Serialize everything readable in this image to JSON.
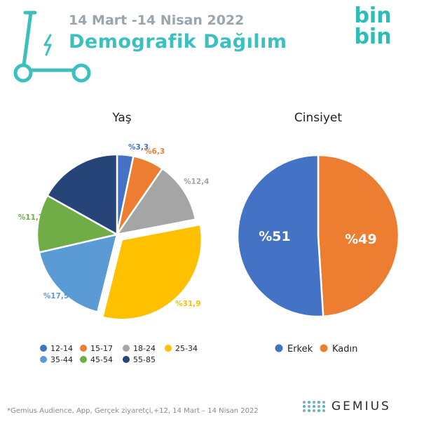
{
  "header": {
    "date_range": "14 Mart -14 Nisan 2022",
    "title": "Demografik Dağılım",
    "logo_line1": "bin",
    "logo_line2": "bin"
  },
  "colors": {
    "teal": "#3cbfbf",
    "gray_text": "#9aa6ad"
  },
  "chart_data": [
    {
      "type": "pie",
      "title": "Yaş",
      "categories": [
        "12-14",
        "15-17",
        "18-24",
        "25-34",
        "35-44",
        "45-54",
        "55-85"
      ],
      "values": [
        3.3,
        6.3,
        12.4,
        31.9,
        17.5,
        11.7,
        16.9
      ],
      "labels": [
        "%3,3",
        "%6,3",
        "%12,4",
        "%31,9",
        "%17,5",
        "%11,7",
        ""
      ],
      "colors": [
        "#4472c4",
        "#ed7d31",
        "#a5a5a5",
        "#ffc000",
        "#5b9bd5",
        "#70ad47",
        "#264478"
      ],
      "exploded": "25-34",
      "legend": "bottom"
    },
    {
      "type": "pie",
      "title": "Cinsiyet",
      "categories": [
        "Erkek",
        "Kadın"
      ],
      "values": [
        51,
        49
      ],
      "labels": [
        "%51",
        "%49"
      ],
      "colors": [
        "#4472c4",
        "#ed7d31"
      ],
      "legend": "bottom"
    }
  ],
  "footer": {
    "note": "*Gemius Audience, App, Gerçek ziyaretçi,+12, 14 Mart – 14 Nisan 2022",
    "brand": "GEMIUS"
  }
}
